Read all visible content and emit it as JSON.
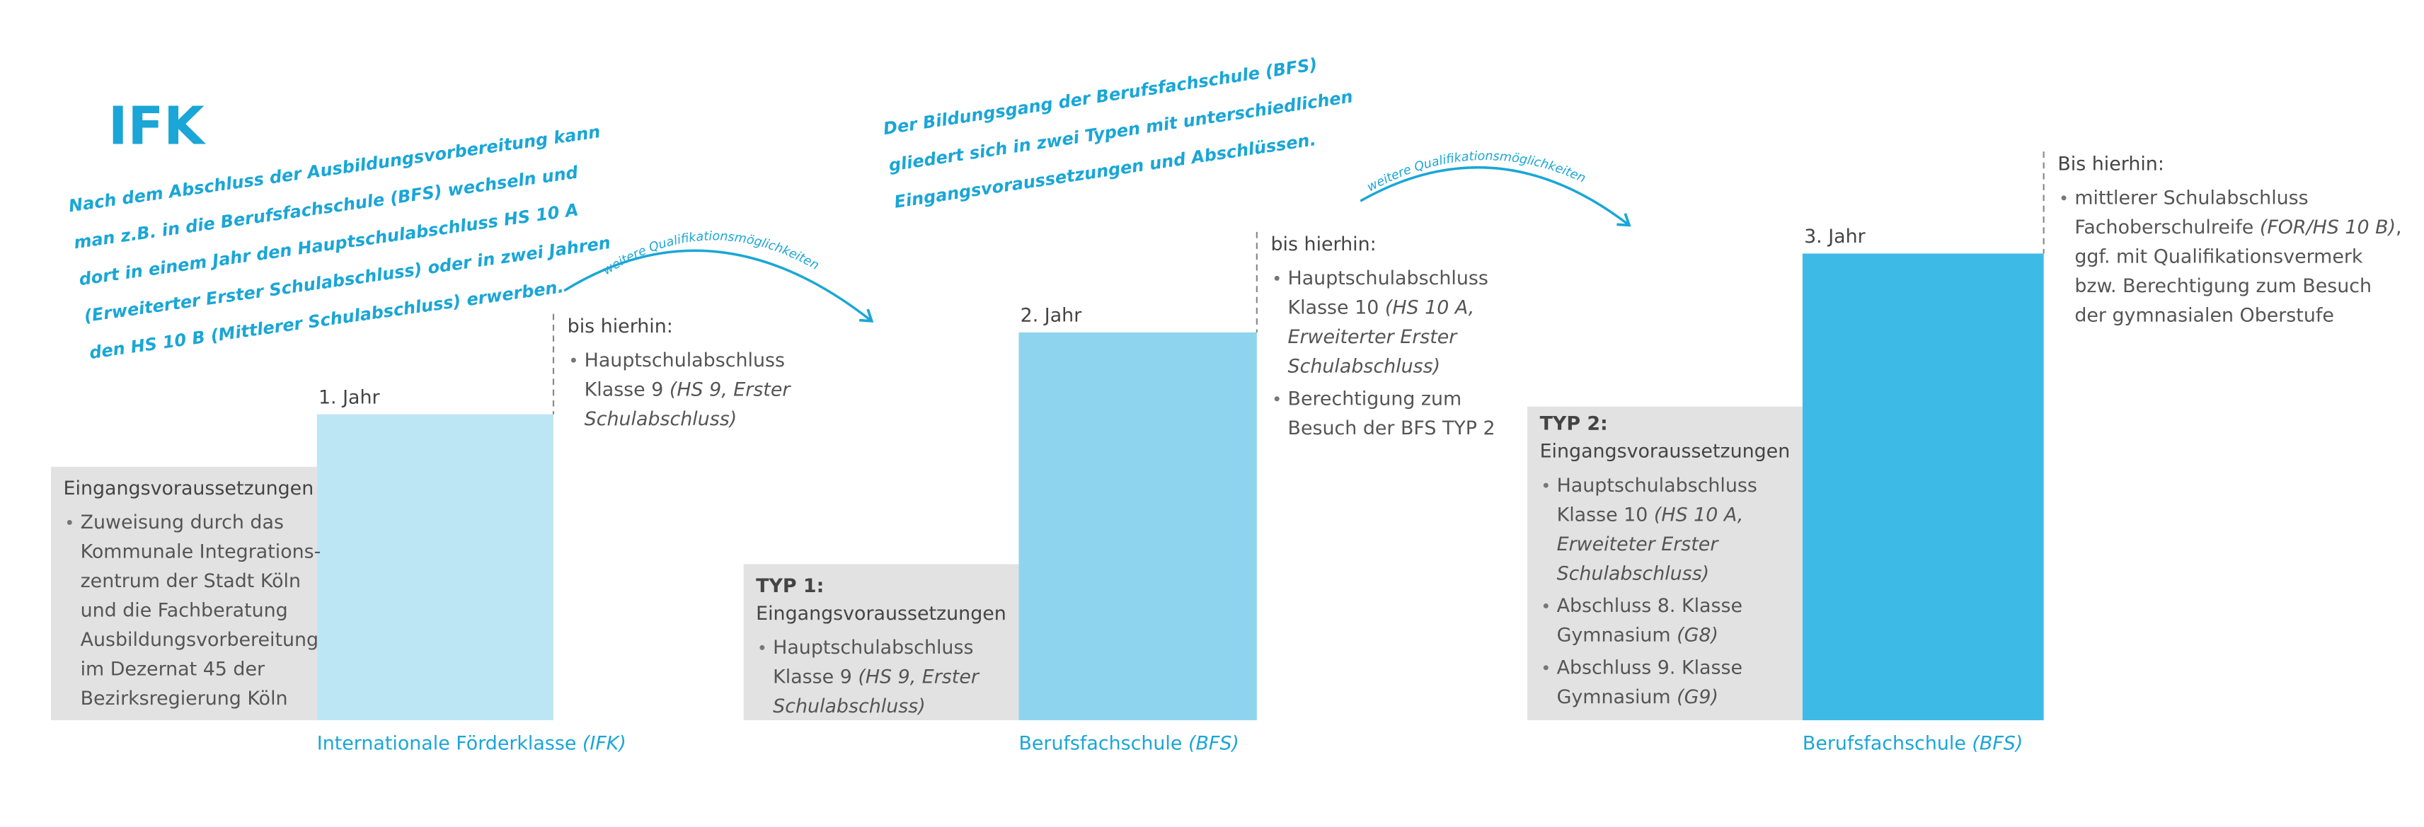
{
  "title": "IFK",
  "note_left": [
    "Nach dem Abschluss der Ausbildungsvorbereitung kann",
    "man z.B. in die Berufsfachschule (BFS) wechseln und",
    "dort in einem Jahr den Hauptschulabschluss HS 10 A",
    "(Erweiterter Erster Schulabschluss) oder in zwei Jahren",
    "den HS 10 B (Mittlerer Schulabschluss) erwerben."
  ],
  "note_middle": [
    "Der Bildungsgang der Berufsfachschule (BFS)",
    "gliedert sich in zwei Typen mit unterschiedlichen",
    "Eingangsvoraussetzungen und Abschlüssen."
  ],
  "arrows": [
    "weitere Qualifikationsmöglichkeiten",
    "weitere Qualifikationsmöglichkeiten"
  ],
  "steps": [
    {
      "year": "1. Jahr",
      "school": [
        {
          "text": "Internationale Förderklasse "
        },
        {
          "text": "(IFK)",
          "italic": true
        }
      ],
      "requirements": {
        "heading": [
          "Eingangsvoraussetzungen"
        ],
        "items": [
          [
            [
              {
                "text": "Zuweisung durch das"
              }
            ],
            [
              {
                "text": "Kommunale Integrations-"
              }
            ],
            [
              {
                "text": "zentrum der Stadt Köln"
              }
            ],
            [
              {
                "text": "und die Fachberatung"
              }
            ],
            [
              {
                "text": "Ausbildungsvorbereitung"
              }
            ],
            [
              {
                "text": "im Dezernat 45 der"
              }
            ],
            [
              {
                "text": "Bezirksregierung Köln"
              }
            ]
          ]
        ]
      },
      "result": {
        "heading": "bis hierhin:",
        "items": [
          [
            [
              {
                "text": "Hauptschulabschluss"
              }
            ],
            [
              {
                "text": "Klasse 9 "
              },
              {
                "text": "(HS 9, Erster",
                "italic": true
              }
            ],
            [
              {
                "text": "Schulabschluss)",
                "italic": true
              }
            ]
          ]
        ]
      }
    },
    {
      "year": "2. Jahr",
      "school": [
        {
          "text": "Berufsfachschule "
        },
        {
          "text": "(BFS)",
          "italic": true
        }
      ],
      "requirements": {
        "heading": [
          "TYP 1:",
          "Eingangsvoraussetzungen"
        ],
        "items": [
          [
            [
              {
                "text": "Hauptschulabschluss"
              }
            ],
            [
              {
                "text": "Klasse 9 "
              },
              {
                "text": "(HS 9, Erster",
                "italic": true
              }
            ],
            [
              {
                "text": "Schulabschluss)",
                "italic": true
              }
            ]
          ]
        ]
      },
      "result": {
        "heading": "bis hierhin:",
        "items": [
          [
            [
              {
                "text": "Hauptschulabschluss"
              }
            ],
            [
              {
                "text": "Klasse 10 "
              },
              {
                "text": "(HS 10 A,",
                "italic": true
              }
            ],
            [
              {
                "text": "Erweiterter Erster",
                "italic": true
              }
            ],
            [
              {
                "text": "Schulabschluss)",
                "italic": true
              }
            ]
          ],
          [
            [
              {
                "text": "Berechtigung zum"
              }
            ],
            [
              {
                "text": "Besuch der BFS TYP 2"
              }
            ]
          ]
        ]
      }
    },
    {
      "year": "3. Jahr",
      "school": [
        {
          "text": "Berufsfachschule "
        },
        {
          "text": "(BFS)",
          "italic": true
        }
      ],
      "requirements": {
        "heading": [
          "TYP 2:",
          "Eingangsvoraussetzungen"
        ],
        "items": [
          [
            [
              {
                "text": "Hauptschulabschluss"
              }
            ],
            [
              {
                "text": "Klasse 10 "
              },
              {
                "text": "(HS 10 A,",
                "italic": true
              }
            ],
            [
              {
                "text": "Erweiteter Erster",
                "italic": true
              }
            ],
            [
              {
                "text": "Schulabschluss)",
                "italic": true
              }
            ]
          ],
          [
            [
              {
                "text": "Abschluss 8. Klasse"
              }
            ],
            [
              {
                "text": "Gymnasium "
              },
              {
                "text": "(G8)",
                "italic": true
              }
            ]
          ],
          [
            [
              {
                "text": "Abschluss 9. Klasse"
              }
            ],
            [
              {
                "text": "Gymnasium "
              },
              {
                "text": "(G9)",
                "italic": true
              }
            ]
          ]
        ]
      },
      "result": {
        "heading": "Bis hierhin:",
        "items": [
          [
            [
              {
                "text": "mittlerer Schulabschluss"
              }
            ],
            [
              {
                "text": "Fachoberschulreife "
              },
              {
                "text": "(FOR/HS 10 B)",
                "italic": true
              },
              {
                "text": ","
              }
            ],
            [
              {
                "text": "ggf. mit Qualifikationsvermerk"
              }
            ],
            [
              {
                "text": "bzw. Berechtigung zum Besuch"
              }
            ],
            [
              {
                "text": "der gymnasialen Oberstufe"
              }
            ]
          ]
        ]
      }
    }
  ]
}
